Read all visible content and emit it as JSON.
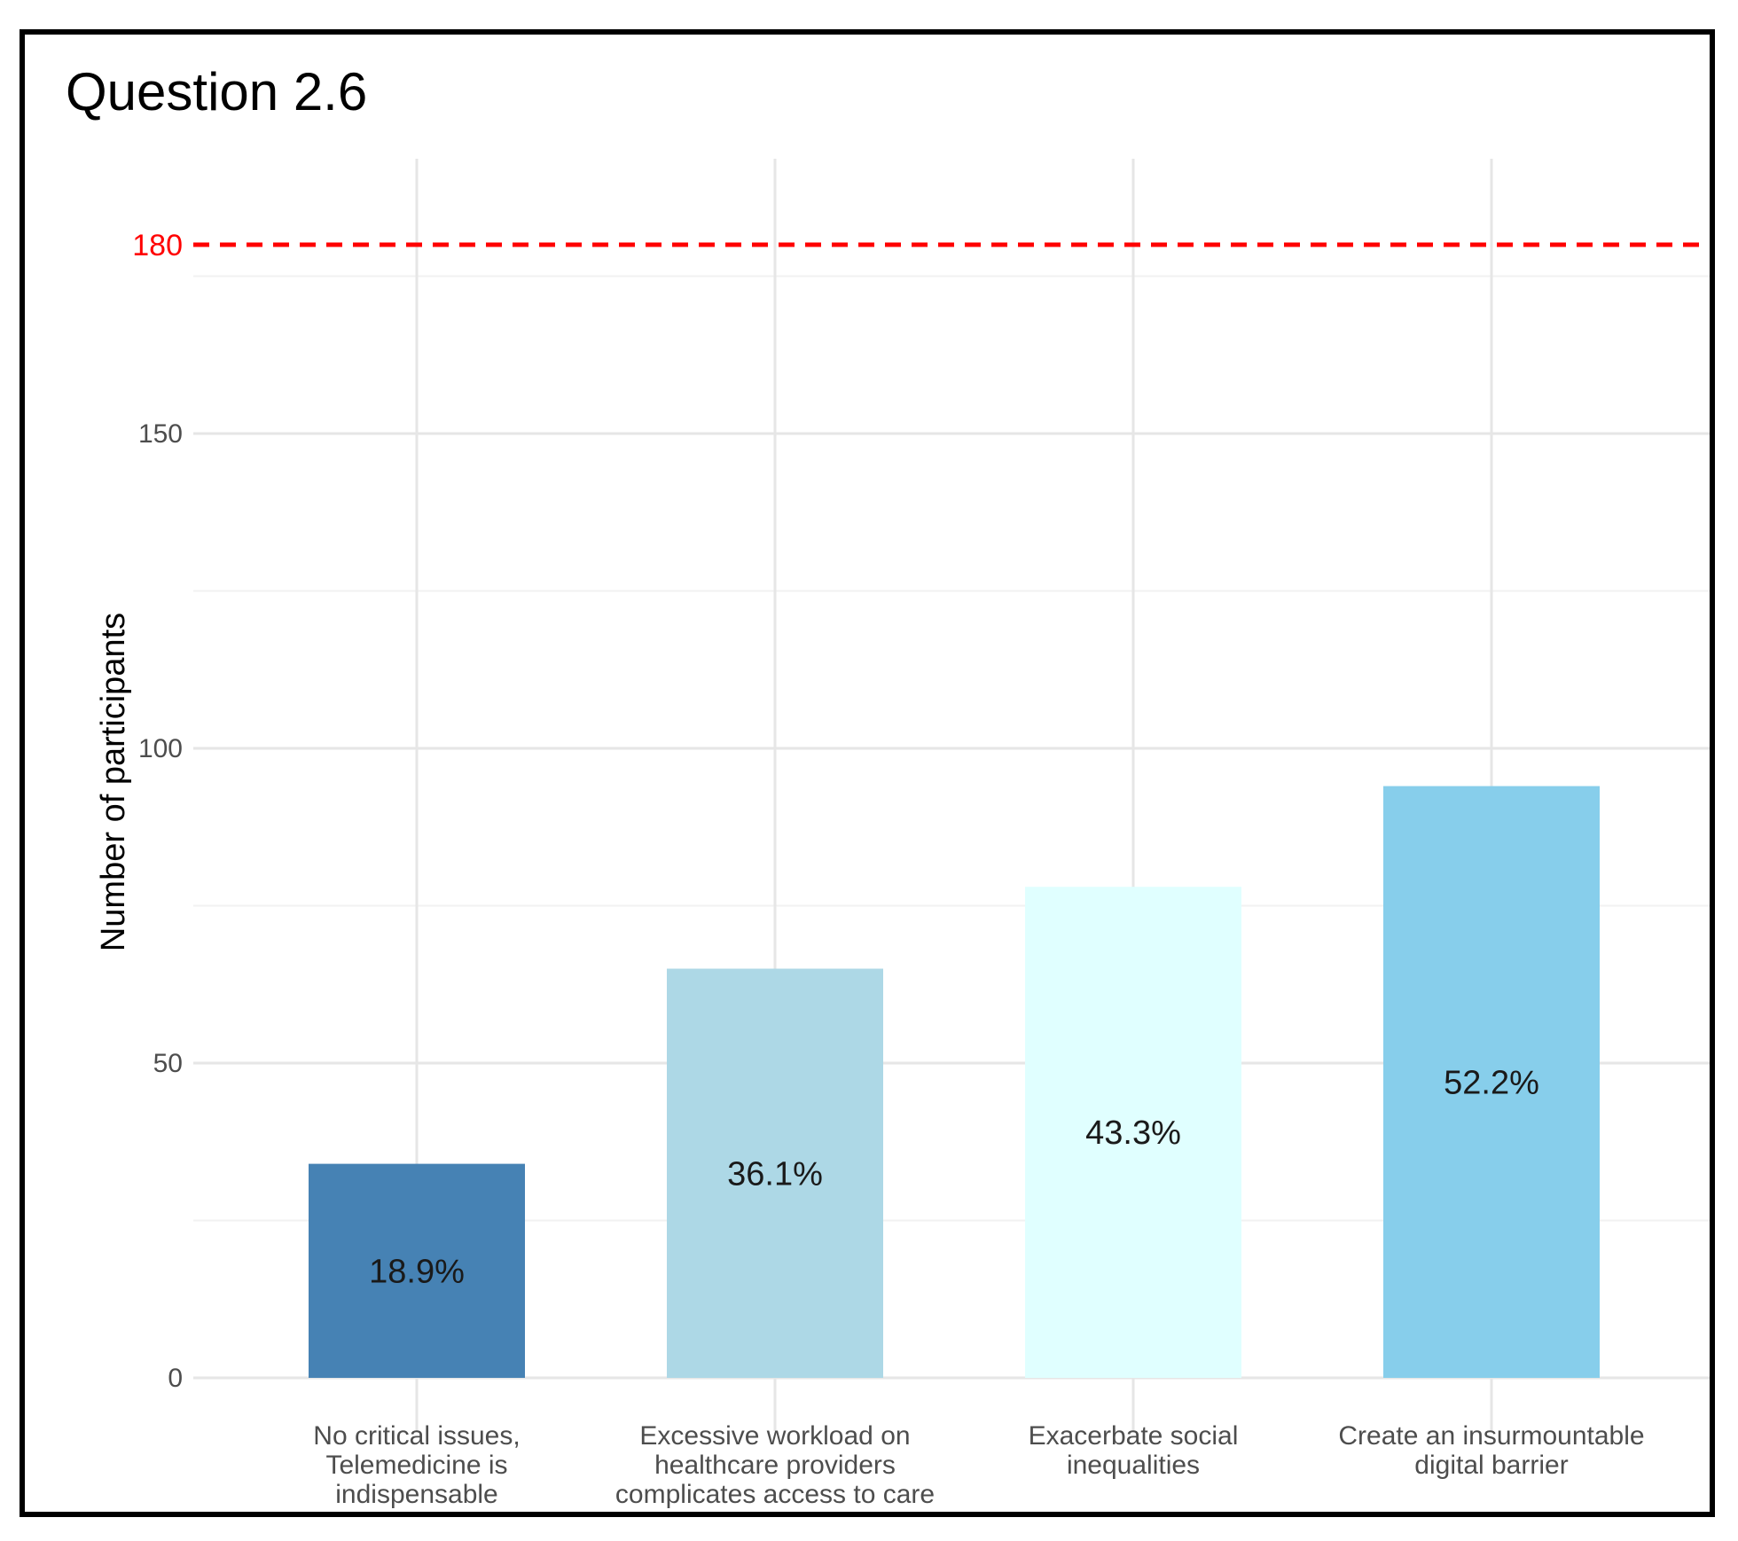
{
  "chart_data": {
    "type": "bar",
    "title": "Question 2.6",
    "xlabel": "",
    "ylabel": "Number of participants",
    "ylim": [
      0,
      190
    ],
    "yticks": [
      0,
      50,
      100,
      150
    ],
    "grid": true,
    "categories": [
      [
        "No critical issues,",
        "Telemedicine is",
        "indispensable"
      ],
      [
        "Excessive workload on",
        "healthcare providers",
        "complicates access to care"
      ],
      [
        "Exacerbate social",
        "inequalities"
      ],
      [
        "Create an insurmountable",
        "digital barrier"
      ]
    ],
    "values": [
      34,
      65,
      78,
      94
    ],
    "labels": [
      "18.9%",
      "36.1%",
      "43.3%",
      "52.2%"
    ],
    "colors": [
      "#4682B4",
      "#ADD8E6",
      "#E0FFFF",
      "#87CEEB"
    ],
    "reference_line": {
      "value": 180,
      "label": "180",
      "color": "#FF0000",
      "style": "dashed"
    }
  }
}
